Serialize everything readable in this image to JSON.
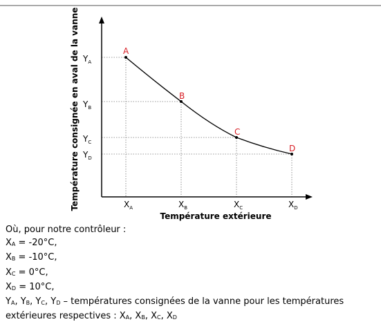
{
  "graph": {
    "y_axis_title": "Température consignée en aval de la vanne",
    "x_axis_title": "Température extérieure",
    "points": [
      "A",
      "B",
      "C",
      "D"
    ],
    "y_labels": [
      {
        "main": "Y",
        "sub": "A"
      },
      {
        "main": "Y",
        "sub": "B"
      },
      {
        "main": "Y",
        "sub": "C"
      },
      {
        "main": "Y",
        "sub": "D"
      }
    ],
    "x_labels": [
      {
        "main": "X",
        "sub": "A"
      },
      {
        "main": "X",
        "sub": "B"
      },
      {
        "main": "X",
        "sub": "C"
      },
      {
        "main": "X",
        "sub": "D"
      }
    ]
  },
  "text": {
    "lines": [
      [
        {
          "t": "Où, pour notre contrôleur :"
        }
      ],
      [
        {
          "t": "X"
        },
        {
          "s": "A"
        },
        {
          "t": " = -20°C,"
        }
      ],
      [
        {
          "t": "X"
        },
        {
          "s": "B"
        },
        {
          "t": " = -10°C,"
        }
      ],
      [
        {
          "t": "X"
        },
        {
          "s": "C"
        },
        {
          "t": " = 0°C,"
        }
      ],
      [
        {
          "t": "X"
        },
        {
          "s": "D"
        },
        {
          "t": " = 10°C,"
        }
      ],
      [
        {
          "t": "Y"
        },
        {
          "s": "A"
        },
        {
          "t": ", Y"
        },
        {
          "s": "B"
        },
        {
          "t": ", Y"
        },
        {
          "s": "C"
        },
        {
          "t": ", Y"
        },
        {
          "s": "D"
        },
        {
          "t": " – températures consignées de la vanne pour les températures"
        }
      ],
      [
        {
          "t": "extérieures respectives : X"
        },
        {
          "s": "A"
        },
        {
          "t": ", X"
        },
        {
          "s": "B"
        },
        {
          "t": ", X"
        },
        {
          "s": "C"
        },
        {
          "t": ", X"
        },
        {
          "s": "D"
        }
      ]
    ]
  }
}
